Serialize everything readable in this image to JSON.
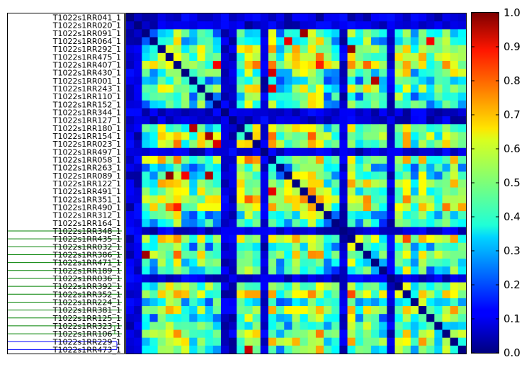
{
  "chart_data": {
    "type": "heatmap",
    "title": "",
    "xlabel": "",
    "ylabel": "",
    "colormap": "jet",
    "value_range": [
      0.0,
      1.0
    ],
    "colorbar_ticks": [
      "0.0",
      "0.1",
      "0.2",
      "0.3",
      "0.4",
      "0.5",
      "0.6",
      "0.7",
      "0.8",
      "0.9",
      "1.0"
    ],
    "dendrogram_colors": {
      "group_a": "#008000",
      "group_b": "#0000ff",
      "link": "#000000"
    },
    "row_labels": [
      "T1022s1RR041_1",
      "T1022s1RR020_1",
      "T1022s1RR091_1",
      "T1022s1RR064_1",
      "T1022s1RR292_1",
      "T1022s1RR475_1",
      "T1022s1RR407_1",
      "T1022s1RR430_1",
      "T1022s1RR001_1",
      "T1022s1RR243_1",
      "T1022s1RR110_1",
      "T1022s1RR152_1",
      "T1022s1RR344_1",
      "T1022s1RR127_1",
      "T1022s1RR180_1",
      "T1022s1RR154_1",
      "T1022s1RR023_1",
      "T1022s1RR497_1",
      "T1022s1RR058_1",
      "T1022s1RR263_1",
      "T1022s1RR089_1",
      "T1022s1RR122_1",
      "T1022s1RR491_1",
      "T1022s1RR351_1",
      "T1022s1RR490_1",
      "T1022s1RR312_1",
      "T1022s1RR164_1",
      "T1022s1RR348_1",
      "T1022s1RR435_1",
      "T1022s1RR032_1",
      "T1022s1RR386_1",
      "T1022s1RR471_1",
      "T1022s1RR189_1",
      "T1022s1RR036_1",
      "T1022s1RR392_1",
      "T1022s1RR352_1",
      "T1022s1RR224_1",
      "T1022s1RR381_1",
      "T1022s1RR125_1",
      "T1022s1RR323_1",
      "T1022s1RR106_1",
      "T1022s1RR229_1",
      "T1022s1RR473_1"
    ],
    "low_value_rows": [
      "T1022s1RR041_1",
      "T1022s1RR020_1",
      "T1022s1RR344_1",
      "T1022s1RR127_1",
      "T1022s1RR497_1",
      "T1022s1RR348_1",
      "T1022s1RR036_1"
    ],
    "grid": false
  }
}
